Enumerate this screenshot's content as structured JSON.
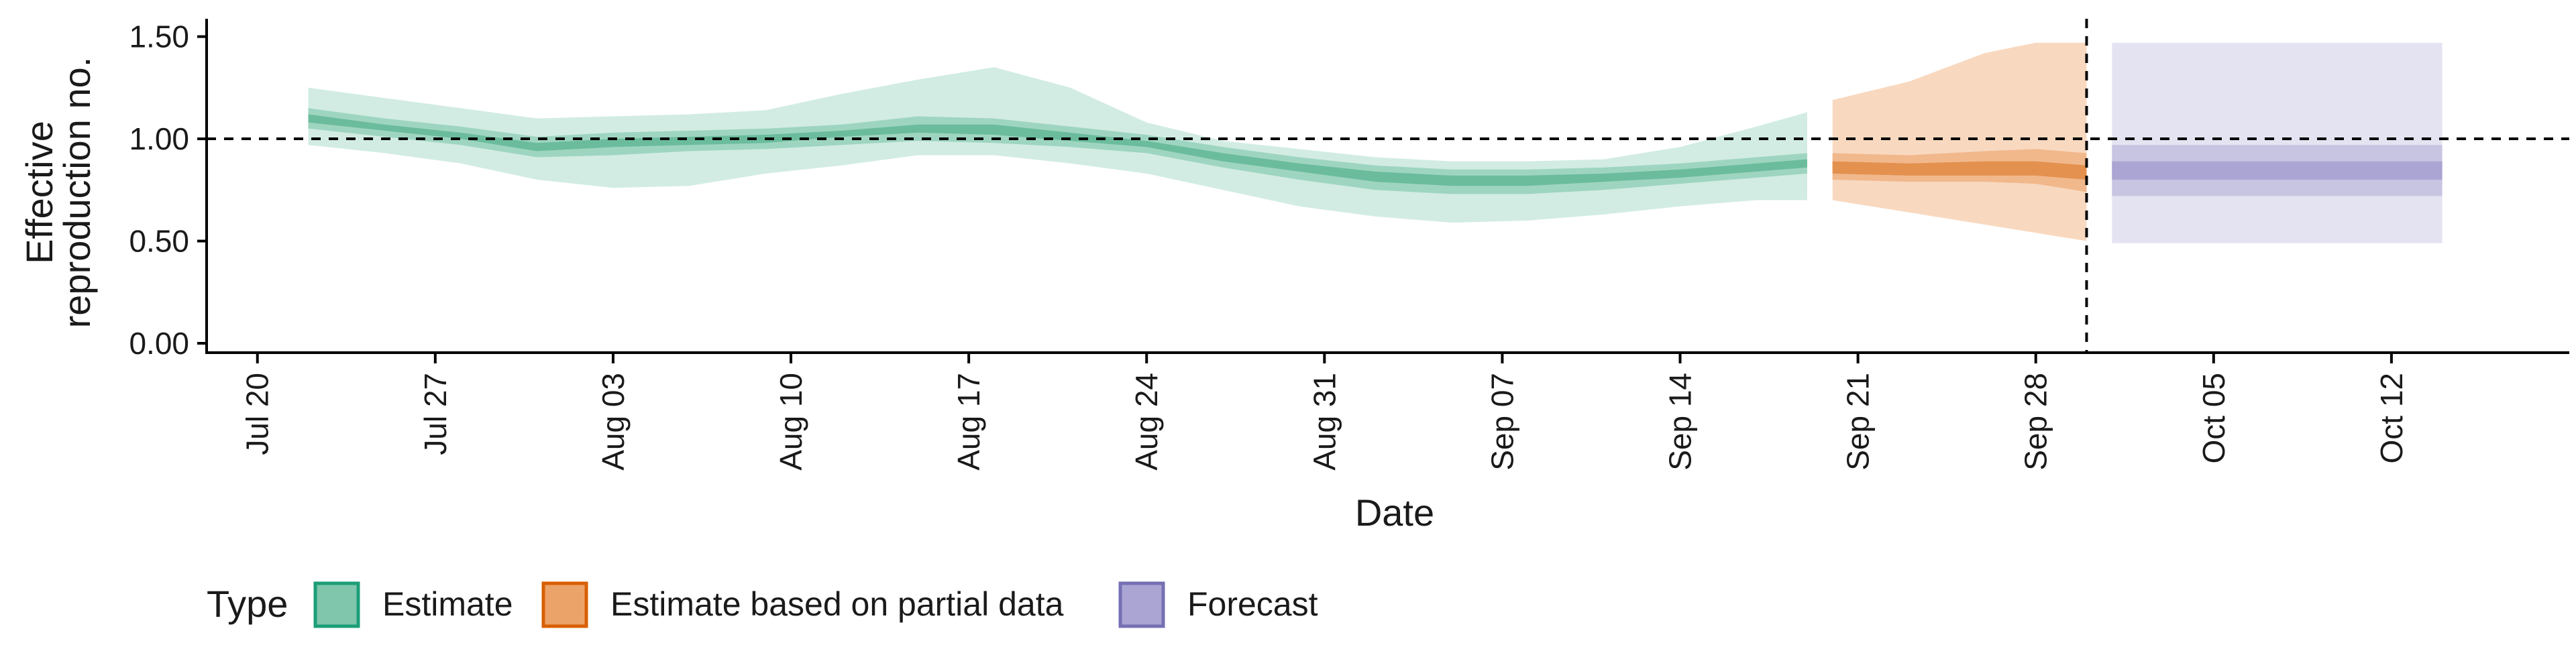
{
  "chart_data": {
    "type": "area",
    "xlabel": "Date",
    "ylabel_lines": [
      "Effective",
      "reproduction no."
    ],
    "ylim": [
      0,
      1.5
    ],
    "y_ticks": [
      "0.00",
      "0.50",
      "1.00",
      "1.50"
    ],
    "x_range": [
      "2020-07-18",
      "2020-10-19"
    ],
    "x_ticks": [
      {
        "date": "2020-07-20",
        "label": "Jul 20"
      },
      {
        "date": "2020-07-27",
        "label": "Jul 27"
      },
      {
        "date": "2020-08-03",
        "label": "Aug 03"
      },
      {
        "date": "2020-08-10",
        "label": "Aug 10"
      },
      {
        "date": "2020-08-17",
        "label": "Aug 17"
      },
      {
        "date": "2020-08-24",
        "label": "Aug 24"
      },
      {
        "date": "2020-08-31",
        "label": "Aug 31"
      },
      {
        "date": "2020-09-07",
        "label": "Sep 07"
      },
      {
        "date": "2020-09-14",
        "label": "Sep 14"
      },
      {
        "date": "2020-09-21",
        "label": "Sep 21"
      },
      {
        "date": "2020-09-28",
        "label": "Sep 28"
      },
      {
        "date": "2020-10-05",
        "label": "Oct 05"
      },
      {
        "date": "2020-10-12",
        "label": "Oct 12"
      }
    ],
    "reference_lines": {
      "horizontal_y": 1.0,
      "vertical_date": "2020-09-30"
    },
    "grid": false,
    "legend": {
      "title": "Type",
      "position": "bottom-left",
      "items": [
        {
          "label": "Estimate",
          "fill": "#7fc6ac",
          "stroke": "#1b9e77"
        },
        {
          "label": "Estimate based on partial data",
          "fill": "#eba36a",
          "stroke": "#d95f02"
        },
        {
          "label": "Forecast",
          "fill": "#aaa5d2",
          "stroke": "#7570b3"
        }
      ]
    },
    "series": [
      {
        "type": "Estimate",
        "colors": {
          "outer": "#d2ece3",
          "mid": "#9ed5c1",
          "inner": "#6bbc9d"
        },
        "points": [
          {
            "date": "2020-07-22",
            "lo90": 0.97,
            "lo50": 1.05,
            "lo20": 1.08,
            "hi20": 1.12,
            "hi50": 1.15,
            "hi90": 1.25
          },
          {
            "date": "2020-07-25",
            "lo90": 0.93,
            "lo50": 1.01,
            "lo20": 1.04,
            "hi20": 1.07,
            "hi50": 1.1,
            "hi90": 1.2
          },
          {
            "date": "2020-07-28",
            "lo90": 0.88,
            "lo50": 0.97,
            "lo20": 1.0,
            "hi20": 1.03,
            "hi50": 1.06,
            "hi90": 1.15
          },
          {
            "date": "2020-07-31",
            "lo90": 0.8,
            "lo50": 0.91,
            "lo20": 0.94,
            "hi20": 0.98,
            "hi50": 1.01,
            "hi90": 1.1
          },
          {
            "date": "2020-08-03",
            "lo90": 0.76,
            "lo50": 0.92,
            "lo20": 0.96,
            "hi20": 1.0,
            "hi50": 1.03,
            "hi90": 1.11
          },
          {
            "date": "2020-08-06",
            "lo90": 0.77,
            "lo50": 0.94,
            "lo20": 0.97,
            "hi20": 1.01,
            "hi50": 1.04,
            "hi90": 1.12
          },
          {
            "date": "2020-08-09",
            "lo90": 0.83,
            "lo50": 0.95,
            "lo20": 0.98,
            "hi20": 1.02,
            "hi50": 1.05,
            "hi90": 1.14
          },
          {
            "date": "2020-08-12",
            "lo90": 0.87,
            "lo50": 0.97,
            "lo20": 1.01,
            "hi20": 1.04,
            "hi50": 1.07,
            "hi90": 1.22
          },
          {
            "date": "2020-08-15",
            "lo90": 0.92,
            "lo50": 0.99,
            "lo20": 1.03,
            "hi20": 1.07,
            "hi50": 1.11,
            "hi90": 1.29
          },
          {
            "date": "2020-08-18",
            "lo90": 0.92,
            "lo50": 0.98,
            "lo20": 1.02,
            "hi20": 1.07,
            "hi50": 1.1,
            "hi90": 1.35
          },
          {
            "date": "2020-08-21",
            "lo90": 0.88,
            "lo50": 0.96,
            "lo20": 0.99,
            "hi20": 1.03,
            "hi50": 1.06,
            "hi90": 1.25
          },
          {
            "date": "2020-08-24",
            "lo90": 0.83,
            "lo50": 0.93,
            "lo20": 0.96,
            "hi20": 0.99,
            "hi50": 1.02,
            "hi90": 1.08
          },
          {
            "date": "2020-08-27",
            "lo90": 0.75,
            "lo50": 0.86,
            "lo20": 0.89,
            "hi20": 0.93,
            "hi50": 0.96,
            "hi90": 0.99
          },
          {
            "date": "2020-08-30",
            "lo90": 0.67,
            "lo50": 0.8,
            "lo20": 0.84,
            "hi20": 0.88,
            "hi50": 0.91,
            "hi90": 0.95
          },
          {
            "date": "2020-09-02",
            "lo90": 0.62,
            "lo50": 0.75,
            "lo20": 0.79,
            "hi20": 0.84,
            "hi50": 0.87,
            "hi90": 0.91
          },
          {
            "date": "2020-09-05",
            "lo90": 0.59,
            "lo50": 0.73,
            "lo20": 0.77,
            "hi20": 0.82,
            "hi50": 0.85,
            "hi90": 0.89
          },
          {
            "date": "2020-09-08",
            "lo90": 0.6,
            "lo50": 0.73,
            "lo20": 0.77,
            "hi20": 0.82,
            "hi50": 0.85,
            "hi90": 0.89
          },
          {
            "date": "2020-09-11",
            "lo90": 0.63,
            "lo50": 0.75,
            "lo20": 0.79,
            "hi20": 0.83,
            "hi50": 0.86,
            "hi90": 0.9
          },
          {
            "date": "2020-09-14",
            "lo90": 0.67,
            "lo50": 0.78,
            "lo20": 0.81,
            "hi20": 0.85,
            "hi50": 0.88,
            "hi90": 0.96
          },
          {
            "date": "2020-09-17",
            "lo90": 0.7,
            "lo50": 0.81,
            "lo20": 0.84,
            "hi20": 0.88,
            "hi50": 0.91,
            "hi90": 1.06
          },
          {
            "date": "2020-09-19",
            "lo90": 0.7,
            "lo50": 0.83,
            "lo20": 0.86,
            "hi20": 0.9,
            "hi50": 0.93,
            "hi90": 1.13
          }
        ]
      },
      {
        "type": "Estimate based on partial data",
        "colors": {
          "outer": "#f8d9c0",
          "mid": "#f1b88c",
          "inner": "#e4914f"
        },
        "points": [
          {
            "date": "2020-09-20",
            "lo90": 0.7,
            "lo50": 0.8,
            "lo20": 0.83,
            "hi20": 0.89,
            "hi50": 0.93,
            "hi90": 1.19
          },
          {
            "date": "2020-09-23",
            "lo90": 0.64,
            "lo50": 0.79,
            "lo20": 0.82,
            "hi20": 0.88,
            "hi50": 0.92,
            "hi90": 1.28
          },
          {
            "date": "2020-09-26",
            "lo90": 0.58,
            "lo50": 0.79,
            "lo20": 0.82,
            "hi20": 0.89,
            "hi50": 0.94,
            "hi90": 1.42
          },
          {
            "date": "2020-09-28",
            "lo90": 0.54,
            "lo50": 0.78,
            "lo20": 0.82,
            "hi20": 0.89,
            "hi50": 0.95,
            "hi90": 1.47
          },
          {
            "date": "2020-09-30",
            "lo90": 0.5,
            "lo50": 0.74,
            "lo20": 0.8,
            "hi20": 0.87,
            "hi50": 0.93,
            "hi90": 1.47
          }
        ]
      },
      {
        "type": "Forecast",
        "colors": {
          "outer": "#e4e3f1",
          "mid": "#c8c5e2",
          "inner": "#aaa5d2"
        },
        "points": [
          {
            "date": "2020-10-01",
            "lo90": 0.49,
            "lo50": 0.72,
            "lo20": 0.8,
            "hi20": 0.89,
            "hi50": 0.97,
            "hi90": 1.47
          },
          {
            "date": "2020-10-14",
            "lo90": 0.49,
            "lo50": 0.72,
            "lo20": 0.8,
            "hi20": 0.89,
            "hi50": 0.97,
            "hi90": 1.47
          }
        ]
      }
    ]
  }
}
